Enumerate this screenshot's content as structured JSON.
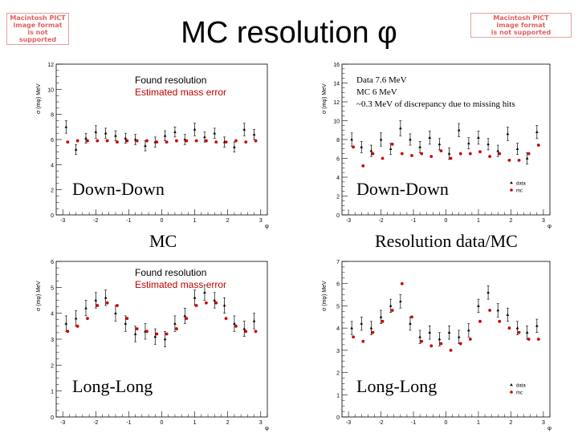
{
  "title": "MC resolution φ",
  "pict_placeholder": [
    "Macintosh PICT",
    "image format",
    "is not supported"
  ],
  "captions": {
    "mc": "MC",
    "resolution_ratio": "Resolution data/MC"
  },
  "colors": {
    "data": "#000000",
    "mc": "#cc0000"
  },
  "chart_data": [
    {
      "type": "scatter",
      "panel": "top-left",
      "ylabel": "σ (mφ) MeV",
      "xlabel": "φ",
      "xlim": [
        -3.2,
        3.2
      ],
      "ylim": [
        0,
        12
      ],
      "xticks": [
        "-3",
        "-2",
        "-1",
        "0",
        "1",
        "2",
        "3"
      ],
      "yticks": [
        "0",
        "2",
        "4",
        "6",
        "8",
        "10",
        "12"
      ],
      "box_label": "Down-Down",
      "legend": [
        "Found resolution",
        "Estimated mass error"
      ],
      "series": [
        {
          "name": "Found resolution",
          "x": [
            -2.9,
            -2.6,
            -2.3,
            -2.0,
            -1.7,
            -1.4,
            -1.1,
            -0.8,
            -0.5,
            -0.2,
            0.1,
            0.4,
            0.7,
            1.0,
            1.3,
            1.6,
            1.9,
            2.2,
            2.5,
            2.8
          ],
          "y": [
            7.0,
            5.2,
            6.1,
            6.6,
            6.5,
            6.3,
            6.1,
            6.0,
            5.5,
            5.8,
            6.3,
            6.6,
            6.0,
            6.8,
            6.2,
            6.5,
            5.8,
            5.4,
            6.8,
            6.4
          ],
          "err": [
            0.5,
            0.4,
            0.4,
            0.5,
            0.4,
            0.4,
            0.4,
            0.4,
            0.4,
            0.4,
            0.4,
            0.4,
            0.4,
            0.5,
            0.4,
            0.4,
            0.4,
            0.4,
            0.5,
            0.4
          ]
        },
        {
          "name": "Estimated mass error",
          "x": [
            -2.9,
            -2.6,
            -2.3,
            -2.0,
            -1.7,
            -1.4,
            -1.1,
            -0.8,
            -0.5,
            -0.2,
            0.1,
            0.4,
            0.7,
            1.0,
            1.3,
            1.6,
            1.9,
            2.2,
            2.5,
            2.8
          ],
          "y": [
            5.8,
            5.9,
            5.9,
            5.9,
            5.9,
            5.8,
            5.9,
            5.9,
            5.9,
            5.8,
            5.8,
            5.9,
            5.9,
            5.9,
            5.9,
            5.8,
            5.8,
            5.9,
            5.8,
            5.9
          ]
        }
      ]
    },
    {
      "type": "scatter",
      "panel": "top-right",
      "ylabel": "σ (mφ) MeV",
      "xlabel": "φ",
      "xlim": [
        -3.2,
        3.2
      ],
      "ylim": [
        0,
        16
      ],
      "xticks": [
        "-3",
        "-2",
        "-1",
        "0",
        "1",
        "2",
        "3"
      ],
      "yticks": [
        "0",
        "2",
        "4",
        "6",
        "8",
        "10",
        "12",
        "14",
        "16"
      ],
      "box_label": "Down-Down",
      "notes": [
        "Data 7.6 MeV",
        "MC 6 MeV",
        "~0.3 MeV of discrepancy due to missing hits"
      ],
      "legend": [
        "data",
        "mc"
      ],
      "series": [
        {
          "name": "data",
          "x": [
            -2.9,
            -2.6,
            -2.3,
            -2.0,
            -1.7,
            -1.4,
            -1.1,
            -0.8,
            -0.5,
            -0.2,
            0.1,
            0.4,
            0.7,
            1.0,
            1.3,
            1.6,
            1.9,
            2.2,
            2.5,
            2.8
          ],
          "y": [
            8.0,
            7.2,
            6.8,
            8.0,
            7.0,
            9.2,
            8.0,
            7.2,
            8.2,
            7.5,
            6.5,
            9.0,
            7.6,
            8.2,
            7.5,
            6.8,
            8.6,
            7.0,
            6.0,
            8.8
          ],
          "err": [
            0.7,
            0.6,
            0.6,
            0.7,
            0.6,
            0.8,
            0.6,
            0.6,
            0.7,
            0.6,
            0.6,
            0.7,
            0.6,
            0.7,
            0.6,
            0.6,
            0.7,
            0.6,
            0.6,
            0.7
          ]
        },
        {
          "name": "mc",
          "x": [
            -2.9,
            -2.6,
            -2.3,
            -2.0,
            -1.7,
            -1.4,
            -1.1,
            -0.8,
            -0.5,
            -0.2,
            0.1,
            0.4,
            0.7,
            1.0,
            1.3,
            1.6,
            1.9,
            2.2,
            2.5,
            2.8
          ],
          "y": [
            7.2,
            5.2,
            6.5,
            6.0,
            7.5,
            6.5,
            6.3,
            6.5,
            6.2,
            6.8,
            6.0,
            6.5,
            6.5,
            6.7,
            6.2,
            6.5,
            5.8,
            5.8,
            6.5,
            7.4
          ]
        }
      ]
    },
    {
      "type": "scatter",
      "panel": "bottom-left",
      "ylabel": "σ (mφ) MeV",
      "xlabel": "φ",
      "xlim": [
        -3.2,
        3.2
      ],
      "ylim": [
        0,
        6
      ],
      "xticks": [
        "-3",
        "-2",
        "-1",
        "0",
        "1",
        "2",
        "3"
      ],
      "yticks": [
        "0",
        "1",
        "2",
        "3",
        "4",
        "5",
        "6"
      ],
      "box_label": "Long-Long",
      "legend": [
        "Found resolution",
        "Estimated mass error"
      ],
      "series": [
        {
          "name": "Found resolution",
          "x": [
            -2.9,
            -2.6,
            -2.3,
            -2.0,
            -1.7,
            -1.4,
            -1.1,
            -0.8,
            -0.5,
            -0.2,
            0.1,
            0.4,
            0.7,
            1.0,
            1.3,
            1.6,
            1.9,
            2.2,
            2.5,
            2.8
          ],
          "y": [
            3.6,
            3.8,
            4.2,
            4.5,
            4.6,
            4.0,
            3.6,
            3.2,
            3.3,
            3.1,
            3.0,
            3.6,
            3.9,
            4.6,
            4.8,
            4.5,
            4.3,
            3.6,
            3.4,
            3.7
          ],
          "err": [
            0.3,
            0.3,
            0.3,
            0.3,
            0.3,
            0.3,
            0.3,
            0.3,
            0.3,
            0.3,
            0.3,
            0.3,
            0.3,
            0.3,
            0.3,
            0.3,
            0.3,
            0.3,
            0.3,
            0.3
          ]
        },
        {
          "name": "Estimated mass error",
          "x": [
            -2.9,
            -2.6,
            -2.3,
            -2.0,
            -1.7,
            -1.4,
            -1.1,
            -0.8,
            -0.5,
            -0.2,
            0.1,
            0.4,
            0.7,
            1.0,
            1.3,
            1.6,
            1.9,
            2.2,
            2.5,
            2.8
          ],
          "y": [
            3.3,
            3.5,
            3.8,
            4.3,
            4.4,
            4.3,
            3.8,
            3.4,
            3.3,
            3.2,
            3.2,
            3.4,
            3.8,
            4.3,
            4.4,
            4.4,
            3.8,
            3.5,
            3.3,
            3.3
          ]
        }
      ]
    },
    {
      "type": "scatter",
      "panel": "bottom-right",
      "ylabel": "σ (mφ) MeV",
      "xlabel": "φ",
      "xlim": [
        -3.2,
        3.2
      ],
      "ylim": [
        0,
        7
      ],
      "xticks": [
        "-3",
        "-2",
        "-1",
        "0",
        "1",
        "2",
        "3"
      ],
      "yticks": [
        "0",
        "1",
        "2",
        "3",
        "4",
        "5",
        "6",
        "7"
      ],
      "box_label": "Long-Long",
      "legend": [
        "data",
        "mc"
      ],
      "series": [
        {
          "name": "data",
          "x": [
            -2.9,
            -2.6,
            -2.3,
            -2.0,
            -1.7,
            -1.4,
            -1.1,
            -0.8,
            -0.5,
            -0.2,
            0.1,
            0.4,
            0.7,
            1.0,
            1.3,
            1.6,
            1.9,
            2.2,
            2.5,
            2.8
          ],
          "y": [
            4.0,
            4.2,
            4.0,
            4.5,
            5.0,
            5.2,
            4.2,
            3.6,
            3.8,
            3.5,
            3.8,
            3.6,
            3.9,
            5.0,
            5.6,
            4.8,
            4.6,
            4.0,
            3.8,
            4.1
          ],
          "err": [
            0.3,
            0.3,
            0.3,
            0.3,
            0.3,
            0.3,
            0.3,
            0.3,
            0.3,
            0.3,
            0.3,
            0.3,
            0.3,
            0.3,
            0.3,
            0.3,
            0.3,
            0.3,
            0.3,
            0.3
          ]
        },
        {
          "name": "mc",
          "x": [
            -2.9,
            -2.6,
            -2.3,
            -2.0,
            -1.7,
            -1.4,
            -1.1,
            -0.8,
            -0.5,
            -0.2,
            0.1,
            0.4,
            0.7,
            1.0,
            1.3,
            1.6,
            1.9,
            2.2,
            2.5,
            2.8
          ],
          "y": [
            3.6,
            3.4,
            3.8,
            4.3,
            4.8,
            6.0,
            4.5,
            3.4,
            3.2,
            3.3,
            3.0,
            3.3,
            3.5,
            4.3,
            4.8,
            4.3,
            4.0,
            3.8,
            3.5,
            3.5
          ]
        }
      ]
    }
  ]
}
